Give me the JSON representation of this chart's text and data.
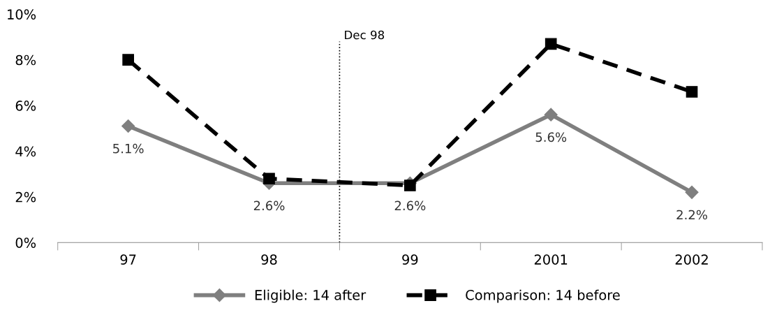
{
  "chart_data": {
    "type": "line",
    "categories": [
      "97",
      "98",
      "99",
      "2001",
      "2002"
    ],
    "series": [
      {
        "name": "Eligible: 14 after",
        "color": "#7f7f7f",
        "values": [
          5.1,
          2.6,
          2.6,
          5.6,
          2.2
        ],
        "value_labels": [
          "5.1%",
          "2.6%",
          "2.6%",
          "5.6%",
          "2.2%"
        ],
        "marker": "diamond",
        "line_style": "solid"
      },
      {
        "name": "Comparison: 14 before",
        "color": "#000000",
        "values": [
          8.0,
          2.8,
          2.5,
          8.7,
          6.6
        ],
        "marker": "square",
        "line_style": "dashed"
      }
    ],
    "ylim": [
      0,
      10
    ],
    "yticks": [
      {
        "value": 0,
        "label": "0%"
      },
      {
        "value": 2,
        "label": "2%"
      },
      {
        "value": 4,
        "label": "4%"
      },
      {
        "value": 6,
        "label": "6%"
      },
      {
        "value": 8,
        "label": "8%"
      },
      {
        "value": 10,
        "label": "10%"
      }
    ],
    "annotations": [
      "Dec 98"
    ],
    "grid": false,
    "legend": "bottom"
  }
}
